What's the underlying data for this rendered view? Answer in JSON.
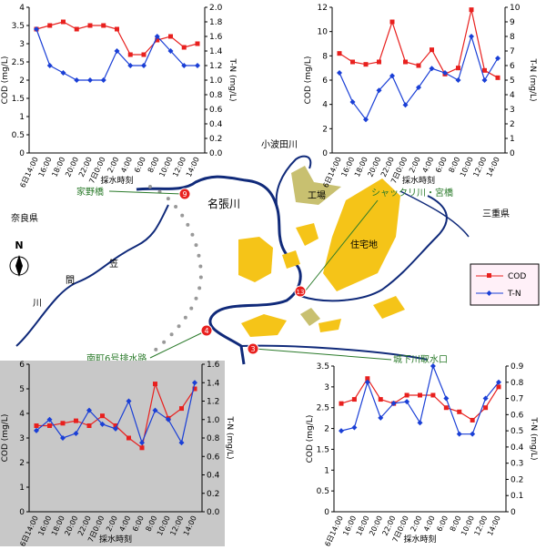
{
  "chart_data": [
    {
      "type": "line",
      "xlabel": "採水時刻",
      "ylabel": "COD (mg/L)",
      "y2label": "T-N (mg/L)",
      "categories": [
        "6日14:00",
        "16:00",
        "18:00",
        "20:00",
        "22:00",
        "7日0:00",
        "2:00",
        "4:00",
        "6:00",
        "8:00",
        "10:00",
        "12:00",
        "14:00"
      ],
      "ylim": [
        0,
        4
      ],
      "yticks": [
        0,
        0.5,
        1,
        1.5,
        2,
        2.5,
        3,
        3.5,
        4
      ],
      "y2lim": [
        0,
        2
      ],
      "y2ticks": [
        {
          "value": 0,
          "label": "0.0"
        },
        {
          "value": 0.2,
          "label": "0.2"
        },
        {
          "value": 0.4,
          "label": "0.4"
        },
        {
          "value": 0.6,
          "label": "0.6"
        },
        {
          "value": 0.8,
          "label": "0.8"
        },
        {
          "value": 1,
          "label": "1.0"
        },
        {
          "value": 1.2,
          "label": "1.2"
        },
        {
          "value": 1.4,
          "label": "1.4"
        },
        {
          "value": 1.6,
          "label": "1.6"
        },
        {
          "value": 1.8,
          "label": "1.8"
        },
        {
          "value": 2,
          "label": "2.0"
        }
      ],
      "background": "#ffffff",
      "series": [
        {
          "name": "COD",
          "color": "#e8201e",
          "marker": "square",
          "values": [
            3.4,
            3.5,
            3.6,
            3.4,
            3.5,
            3.5,
            3.4,
            2.7,
            2.7,
            3.1,
            3.2,
            2.9,
            3.0
          ]
        },
        {
          "name": "T-N",
          "color": "#1a3fd6",
          "marker": "diamond",
          "axis": "y2",
          "values": [
            1.7,
            1.2,
            1.1,
            1.0,
            1.0,
            1.0,
            1.4,
            1.2,
            1.2,
            1.6,
            1.4,
            1.2,
            1.2
          ]
        }
      ]
    },
    {
      "type": "line",
      "xlabel": "採水時刻",
      "ylabel": "COD (mg/L)",
      "y2label": "T-N (mg/L)",
      "categories": [
        "6日14:00",
        "16:00",
        "18:00",
        "20:00",
        "22:00",
        "7日0:00",
        "2:00",
        "4:00",
        "6:00",
        "8:00",
        "10:00",
        "12:00",
        "14:00"
      ],
      "ylim": [
        0,
        12
      ],
      "yticks": [
        0,
        2,
        4,
        6,
        8,
        10,
        12
      ],
      "y2lim": [
        0,
        10
      ],
      "y2ticks": [
        0,
        1,
        2,
        3,
        4,
        5,
        6,
        7,
        8,
        9,
        10
      ],
      "background": "#ffffff",
      "series": [
        {
          "name": "COD",
          "color": "#e8201e",
          "marker": "square",
          "values": [
            8.2,
            7.5,
            7.3,
            7.5,
            10.8,
            7.5,
            7.2,
            8.5,
            6.5,
            7.0,
            11.8,
            6.8,
            6.2
          ]
        },
        {
          "name": "T-N",
          "color": "#1a3fd6",
          "marker": "diamond",
          "axis": "y2",
          "values": [
            5.5,
            3.5,
            2.3,
            4.3,
            5.3,
            3.3,
            4.5,
            5.8,
            5.5,
            5.0,
            8.0,
            5.0,
            6.5
          ]
        }
      ]
    },
    {
      "type": "line",
      "xlabel": "採水時刻",
      "ylabel": "COD (mg/L)",
      "y2label": "T-N (mg/L)",
      "categories": [
        "6日14:00",
        "16:00",
        "18:00",
        "20:00",
        "22:00",
        "7日0:00",
        "2:00",
        "4:00",
        "6:00",
        "8:00",
        "10:00",
        "12:00",
        "14:00"
      ],
      "ylim": [
        0,
        6
      ],
      "yticks": [
        0,
        1,
        2,
        3,
        4,
        5,
        6
      ],
      "y2lim": [
        0,
        1.6
      ],
      "y2ticks": [
        {
          "value": 0,
          "label": "0.0"
        },
        {
          "value": 0.2,
          "label": "0.2"
        },
        {
          "value": 0.4,
          "label": "0.4"
        },
        {
          "value": 0.6,
          "label": "0.6"
        },
        {
          "value": 0.8,
          "label": "0.8"
        },
        {
          "value": 1,
          "label": "1.0"
        },
        {
          "value": 1.2,
          "label": "1.2"
        },
        {
          "value": 1.4,
          "label": "1.4"
        },
        {
          "value": 1.6,
          "label": "1.6"
        }
      ],
      "background": "#c8c8c8",
      "series": [
        {
          "name": "COD",
          "color": "#e8201e",
          "marker": "square",
          "values": [
            3.5,
            3.5,
            3.6,
            3.7,
            3.5,
            3.9,
            3.5,
            3.0,
            2.6,
            5.2,
            3.8,
            4.2,
            5.0
          ]
        },
        {
          "name": "T-N",
          "color": "#1a3fd6",
          "marker": "diamond",
          "axis": "y2",
          "values": [
            0.88,
            1.0,
            0.8,
            0.85,
            1.1,
            0.95,
            0.9,
            1.2,
            0.75,
            1.1,
            1.0,
            0.75,
            1.4
          ]
        }
      ]
    },
    {
      "type": "line",
      "xlabel": "採水時刻",
      "ylabel": "COD (mg/L)",
      "y2label": "T-N (mg/L)",
      "categories": [
        "6日14:00",
        "16:00",
        "18:00",
        "20:00",
        "22:00",
        "7日0:00",
        "2:00",
        "4:00",
        "6:00",
        "8:00",
        "10:00",
        "12:00",
        "14:00"
      ],
      "ylim": [
        0,
        3.5
      ],
      "yticks": [
        0,
        0.5,
        1,
        1.5,
        2,
        2.5,
        3,
        3.5
      ],
      "y2lim": [
        0,
        0.9
      ],
      "y2ticks": [
        0,
        0.1,
        0.2,
        0.3,
        0.4,
        0.5,
        0.6,
        0.7,
        0.8,
        0.9
      ],
      "background": "#ffffff",
      "series": [
        {
          "name": "COD",
          "color": "#e8201e",
          "marker": "square",
          "values": [
            2.6,
            2.7,
            3.2,
            2.7,
            2.6,
            2.8,
            2.8,
            2.8,
            2.5,
            2.4,
            2.2,
            2.5,
            3.0
          ]
        },
        {
          "name": "T-N",
          "color": "#1a3fd6",
          "marker": "diamond",
          "axis": "y2",
          "values": [
            0.5,
            0.52,
            0.8,
            0.58,
            0.67,
            0.68,
            0.55,
            0.9,
            0.7,
            0.48,
            0.48,
            0.7,
            0.8
          ]
        }
      ]
    }
  ],
  "map": {
    "river_small": "小波田川",
    "factory": "工場",
    "shakkuri": "シャックリ川・宮橋",
    "nabari": "名張川",
    "ieno": "家野橋",
    "nara": "奈良県",
    "mie": "三重県",
    "residential": "住宅地",
    "kasama1": "笠",
    "kasama2": "間",
    "kasama3": "川",
    "minamimachi": "南町6号排水路",
    "shiroshita": "城下川取水口",
    "north": "N",
    "points": [
      "9",
      "13",
      "4",
      "3"
    ]
  }
}
